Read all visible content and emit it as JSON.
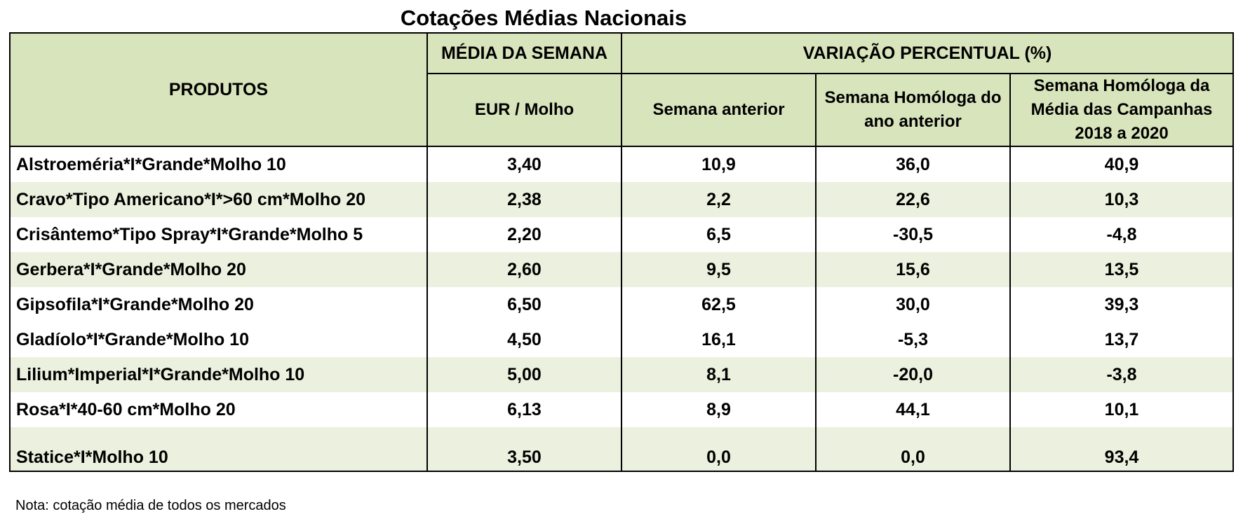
{
  "title": "Cotações Médias Nacionais",
  "header": {
    "produtos": "PRODUTOS",
    "media_semana": "MÉDIA DA SEMANA",
    "unidade": "EUR / Molho",
    "variacao": "VARIAÇÃO PERCENTUAL (%)",
    "semana_anterior": "Semana anterior",
    "semana_homologa": "Semana Homóloga do ano anterior",
    "semana_homologa_campanhas": "Semana Homóloga da Média das Campanhas 2018 a 2020"
  },
  "rows": [
    {
      "produto": "Alstroeméria*I*Grande*Molho 10",
      "media": "3,40",
      "anterior": "10,9",
      "homologa": "36,0",
      "campanhas": "40,9"
    },
    {
      "produto": "Cravo*Tipo Americano*I*>60 cm*Molho 20",
      "media": "2,38",
      "anterior": "2,2",
      "homologa": "22,6",
      "campanhas": "10,3"
    },
    {
      "produto": "Crisântemo*Tipo Spray*I*Grande*Molho 5",
      "media": "2,20",
      "anterior": "6,5",
      "homologa": "-30,5",
      "campanhas": "-4,8"
    },
    {
      "produto": "Gerbera*I*Grande*Molho 20",
      "media": "2,60",
      "anterior": "9,5",
      "homologa": "15,6",
      "campanhas": "13,5"
    },
    {
      "produto": "Gipsofila*I*Grande*Molho 20",
      "media": "6,50",
      "anterior": "62,5",
      "homologa": "30,0",
      "campanhas": "39,3"
    },
    {
      "produto": "Gladíolo*I*Grande*Molho 10",
      "media": "4,50",
      "anterior": "16,1",
      "homologa": "-5,3",
      "campanhas": "13,7"
    },
    {
      "produto": "Lilium*Imperial*I*Grande*Molho 10",
      "media": "5,00",
      "anterior": "8,1",
      "homologa": "-20,0",
      "campanhas": "-3,8"
    },
    {
      "produto": "Rosa*I*40-60 cm*Molho 20",
      "media": "6,13",
      "anterior": "8,9",
      "homologa": "44,1",
      "campanhas": "10,1"
    },
    {
      "produto": "Statice*I*Molho 10",
      "media": "3,50",
      "anterior": "0,0",
      "homologa": "0,0",
      "campanhas": "93,4"
    }
  ],
  "note": "Nota: cotação média de todos os mercados",
  "colors": {
    "header_bg": "#d8e4bc",
    "stripe_bg": "#ebf1de",
    "white_bg": "#ffffff",
    "border": "#000000"
  }
}
